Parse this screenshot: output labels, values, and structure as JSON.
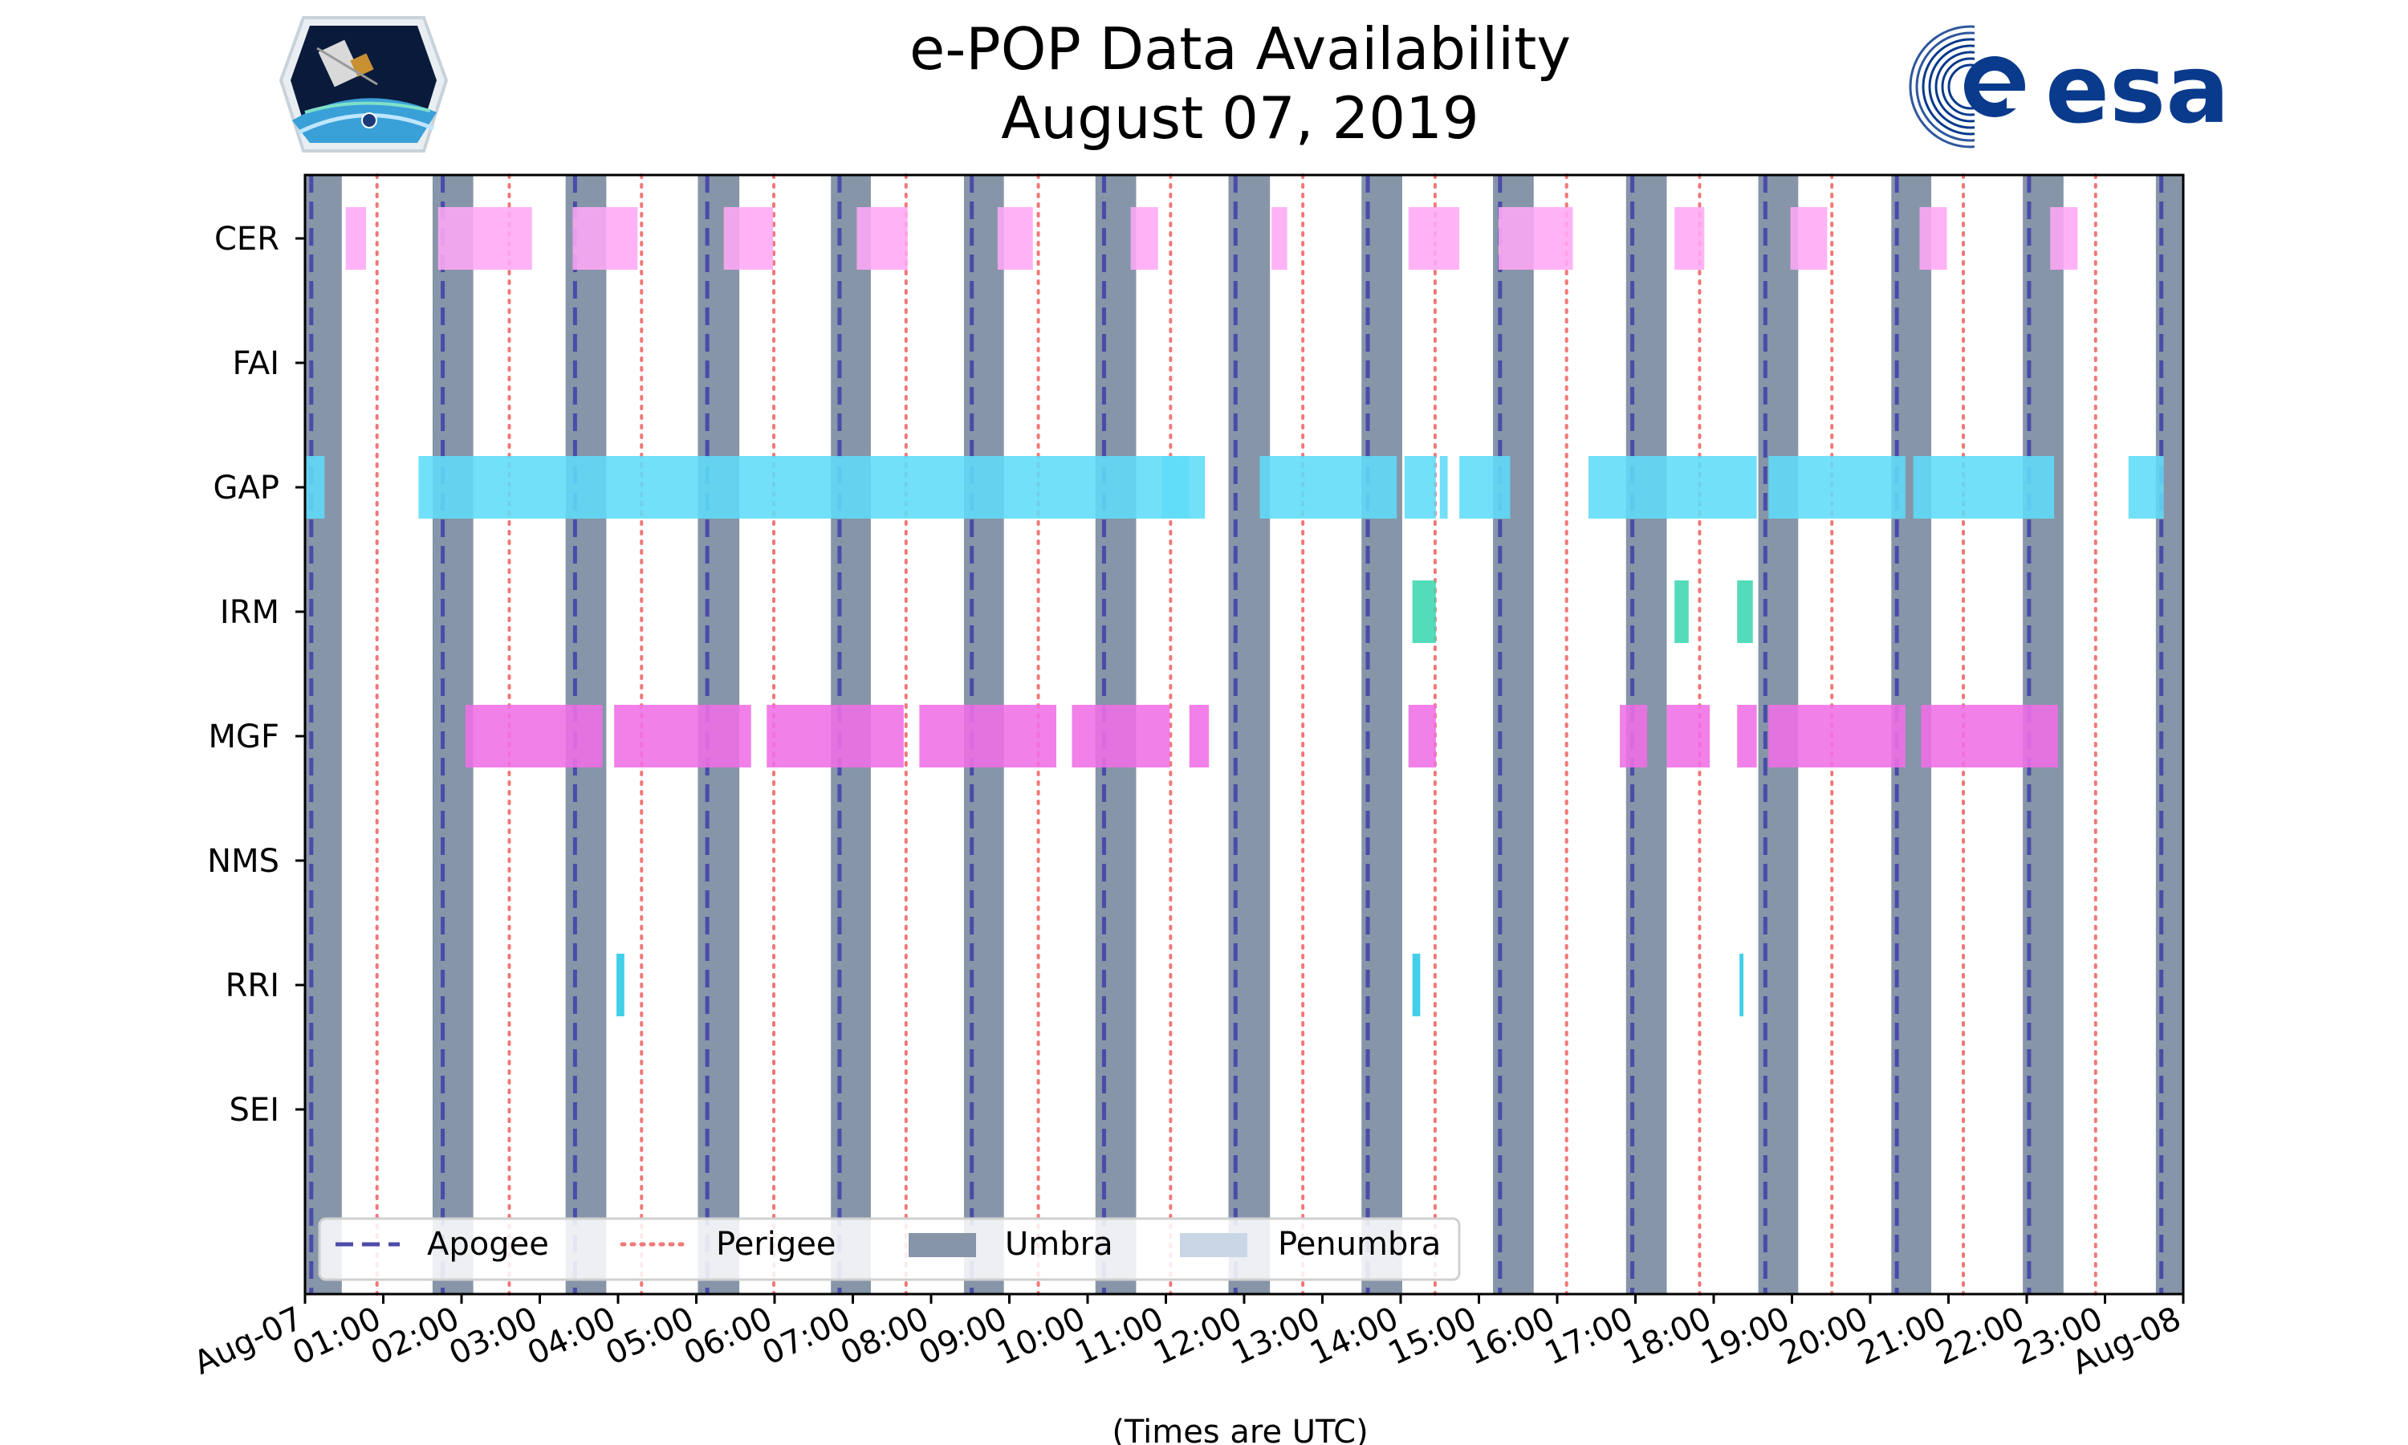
{
  "chart_data": {
    "type": "timeline",
    "title_lines": [
      "e-POP Data Availability",
      "August 07, 2019"
    ],
    "xlabel": "(Times are UTC)",
    "xlim_hours": [
      0,
      24
    ],
    "x_tick_labels": [
      "Aug-07",
      "01:00",
      "02:00",
      "03:00",
      "04:00",
      "05:00",
      "06:00",
      "07:00",
      "08:00",
      "09:00",
      "10:00",
      "11:00",
      "12:00",
      "13:00",
      "14:00",
      "15:00",
      "16:00",
      "17:00",
      "18:00",
      "19:00",
      "20:00",
      "21:00",
      "22:00",
      "23:00",
      "Aug-08"
    ],
    "instruments": [
      "CER",
      "FAI",
      "GAP",
      "IRM",
      "MGF",
      "NMS",
      "RRI",
      "SEI"
    ],
    "colors": {
      "umbra": "#8695a8",
      "penumbra": "#c9d6e6",
      "apogee": "#4b4ba8",
      "perigee": "#f07878",
      "CER": "#ffa8f5",
      "GAP": "#5fdcf8",
      "IRM": "#3cd7b0",
      "MGF": "#f06ee6",
      "RRI": "#28c8e6"
    },
    "legend": [
      {
        "label": "Apogee",
        "style": "dashed"
      },
      {
        "label": "Perigee",
        "style": "dotted"
      },
      {
        "label": "Umbra",
        "style": "patch"
      },
      {
        "label": "Penumbra",
        "style": "patch"
      }
    ],
    "umbra_hours": [
      [
        0,
        0.47
      ],
      [
        1.63,
        2.15
      ],
      [
        3.33,
        3.85
      ],
      [
        5.02,
        5.55
      ],
      [
        6.72,
        7.23
      ],
      [
        8.42,
        8.93
      ],
      [
        10.1,
        10.62
      ],
      [
        11.8,
        12.33
      ],
      [
        13.5,
        14.02
      ],
      [
        15.18,
        15.7
      ],
      [
        16.88,
        17.4
      ],
      [
        18.57,
        19.08
      ],
      [
        20.27,
        20.78
      ],
      [
        21.95,
        22.47
      ],
      [
        23.65,
        24
      ]
    ],
    "apogee_hours": [
      0.08,
      1.76,
      3.45,
      5.14,
      6.83,
      8.52,
      10.21,
      11.89,
      13.58,
      15.27,
      16.96,
      18.66,
      20.34,
      22.03,
      23.72
    ],
    "perigee_hours": [
      0.92,
      2.61,
      4.3,
      5.99,
      7.68,
      9.37,
      11.06,
      12.75,
      14.44,
      16.12,
      17.82,
      19.51,
      21.19,
      22.88
    ],
    "intervals_hours": {
      "CER": [
        [
          0.52,
          0.78
        ],
        [
          1.7,
          2.9
        ],
        [
          3.42,
          4.25
        ],
        [
          5.35,
          5.98
        ],
        [
          7.05,
          7.7
        ],
        [
          8.85,
          9.3
        ],
        [
          10.55,
          10.9
        ],
        [
          12.35,
          12.55
        ],
        [
          14.1,
          14.75
        ],
        [
          15.25,
          16.2
        ],
        [
          17.5,
          17.88
        ],
        [
          18.98,
          19.45
        ],
        [
          20.63,
          20.98
        ],
        [
          22.3,
          22.65
        ]
      ],
      "FAI": [],
      "GAP": [
        [
          0,
          0.25
        ],
        [
          1.45,
          11.3
        ],
        [
          10.95,
          11.5
        ],
        [
          12.2,
          13.95
        ],
        [
          14.05,
          14.45
        ],
        [
          14.5,
          14.6
        ],
        [
          14.75,
          15.4
        ],
        [
          16.4,
          18.55
        ],
        [
          18.7,
          20.45
        ],
        [
          20.55,
          22.35
        ],
        [
          23.3,
          23.75
        ]
      ],
      "IRM": [
        [
          14.15,
          14.45
        ],
        [
          17.5,
          17.68
        ],
        [
          18.3,
          18.5
        ]
      ],
      "MGF": [
        [
          2.05,
          3.8
        ],
        [
          3.95,
          5.7
        ],
        [
          5.9,
          7.65
        ],
        [
          7.85,
          9.6
        ],
        [
          9.8,
          11.05
        ],
        [
          11.3,
          11.55
        ],
        [
          14.1,
          14.45
        ],
        [
          16.8,
          17.15
        ],
        [
          17.4,
          17.95
        ],
        [
          18.3,
          18.55
        ],
        [
          18.7,
          20.45
        ],
        [
          20.65,
          22.4
        ]
      ],
      "NMS": [],
      "RRI": [
        [
          3.98,
          4.08
        ],
        [
          14.15,
          14.25
        ],
        [
          18.33,
          18.38
        ]
      ],
      "SEI": []
    }
  }
}
